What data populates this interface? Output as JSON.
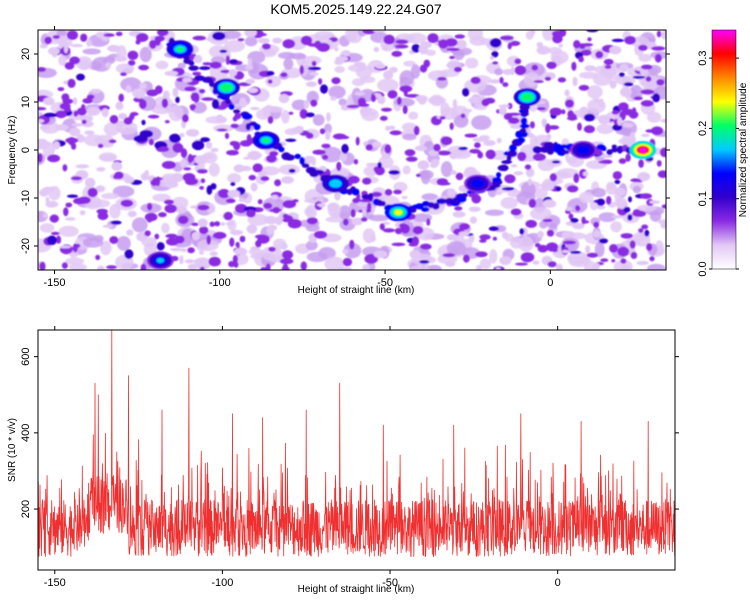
{
  "chart_data": [
    {
      "type": "heatmap",
      "title": "KOM5.2025.149.22.24.G07",
      "xlabel": "Height of straight line (km)",
      "ylabel": "Frequency (Hz)",
      "colorbar_label": "Normalized spectral amplitude",
      "xlim": [
        -155,
        35
      ],
      "ylim": [
        -25,
        25
      ],
      "zlim": [
        0,
        0.34
      ],
      "x_ticks": [
        {
          "value": -150,
          "label": "-150"
        },
        {
          "value": -100,
          "label": "-100"
        },
        {
          "value": -50,
          "label": "-50"
        },
        {
          "value": 0,
          "label": "0"
        }
      ],
      "y_ticks": [
        {
          "value": -20,
          "label": "-20"
        },
        {
          "value": -10,
          "label": "-10"
        },
        {
          "value": 0,
          "label": "0"
        },
        {
          "value": 10,
          "label": "10"
        },
        {
          "value": 20,
          "label": "20"
        }
      ],
      "colorbar_ticks": [
        {
          "value": 0.0,
          "label": "0.0"
        },
        {
          "value": 0.1,
          "label": "0.1"
        },
        {
          "value": 0.2,
          "label": "0.2"
        },
        {
          "value": 0.3,
          "label": "0.3"
        }
      ],
      "ridges": [
        {
          "x": [
            -115,
            -100,
            -86,
            -65,
            -46,
            -30,
            -17,
            -9,
            -6
          ],
          "y": [
            22,
            12,
            2,
            -7,
            -13,
            -11,
            -7,
            3,
            12
          ]
        },
        {
          "x": [
            -4,
            5,
            15,
            28
          ],
          "y": [
            0.5,
            0,
            0,
            0
          ]
        }
      ],
      "peaks": [
        {
          "x": 28,
          "y": 0,
          "value": 0.34
        },
        {
          "x": -46,
          "y": -13,
          "value": 0.25
        },
        {
          "x": -98,
          "y": 13,
          "value": 0.22
        },
        {
          "x": -86,
          "y": 2,
          "value": 0.2
        },
        {
          "x": -112,
          "y": 21,
          "value": 0.2
        },
        {
          "x": -7,
          "y": 11,
          "value": 0.22
        },
        {
          "x": -65,
          "y": -7,
          "value": 0.18
        },
        {
          "x": -118,
          "y": -23,
          "value": 0.16
        },
        {
          "x": 10,
          "y": 0,
          "value": 0.15
        },
        {
          "x": -22,
          "y": -7,
          "value": 0.14
        }
      ],
      "colors": [
        "#ffffff",
        "#e2c8f5",
        "#8a2be2",
        "#3300cc",
        "#0000ff",
        "#00ccff",
        "#00ff66",
        "#ffff00",
        "#ff8800",
        "#ff0000",
        "#ff00ff"
      ]
    },
    {
      "type": "line",
      "xlabel": "Height of straight line (km)",
      "ylabel": "SNR (10 * v/v)",
      "xlim": [
        -155,
        35
      ],
      "ylim": [
        40,
        670
      ],
      "color": "#f03030",
      "x_ticks": [
        {
          "value": -150,
          "label": "-150"
        },
        {
          "value": -100,
          "label": "-100"
        },
        {
          "value": -50,
          "label": "-50"
        },
        {
          "value": 0,
          "label": "0"
        }
      ],
      "y_ticks": [
        {
          "value": 200,
          "label": "200"
        },
        {
          "value": 400,
          "label": "400"
        },
        {
          "value": 600,
          "label": "600"
        }
      ],
      "baseline": 150,
      "notable_peaks": [
        {
          "x": -133,
          "y": 670
        },
        {
          "x": -138,
          "y": 530
        },
        {
          "x": -110,
          "y": 570
        },
        {
          "x": -128,
          "y": 550
        },
        {
          "x": -65,
          "y": 530
        },
        {
          "x": -97,
          "y": 450
        },
        {
          "x": -75,
          "y": 460
        },
        {
          "x": -137,
          "y": 500
        },
        {
          "x": -118,
          "y": 460
        },
        {
          "x": -88,
          "y": 440
        },
        {
          "x": -52,
          "y": 420
        },
        {
          "x": -31,
          "y": 420
        },
        {
          "x": -11,
          "y": 450
        },
        {
          "x": 7,
          "y": 430
        },
        {
          "x": 27,
          "y": 430
        }
      ]
    }
  ]
}
